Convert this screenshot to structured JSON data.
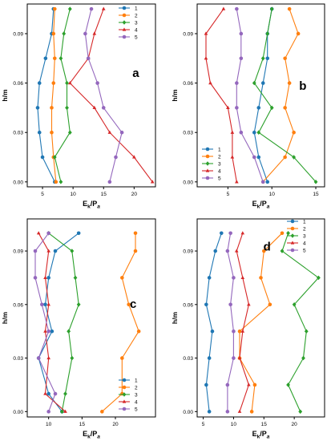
{
  "figure": {
    "colors": [
      "#1f77b4",
      "#ff7f0e",
      "#2ca02c",
      "#d62728",
      "#9467bd"
    ]
  },
  "chart_data": [
    {
      "type": "line",
      "panel_label": "a",
      "ylabel": "h/m",
      "xlabel_main": "E",
      "xlabel_sub1": "k",
      "xlabel_mid": "/P",
      "xlabel_sub2": "a",
      "xlim": [
        2.5,
        23.5
      ],
      "ylim": [
        -0.003,
        0.108
      ],
      "xticks": [
        5,
        10,
        15,
        20
      ],
      "yticks": [
        0.0,
        0.03,
        0.06,
        0.09
      ],
      "ytick_labels": [
        "0.00",
        "0.03",
        "0.06",
        "0.09"
      ],
      "legend_position": "top-right",
      "series": [
        {
          "name": "1",
          "points": [
            [
              7.0,
              0.0
            ],
            [
              5.0,
              0.015
            ],
            [
              4.5,
              0.03
            ],
            [
              4.2,
              0.045
            ],
            [
              4.5,
              0.06
            ],
            [
              5.5,
              0.075
            ],
            [
              6.5,
              0.09
            ],
            [
              6.8,
              0.105
            ]
          ]
        },
        {
          "name": "2",
          "points": [
            [
              7.2,
              0.0
            ],
            [
              6.8,
              0.015
            ],
            [
              6.5,
              0.03
            ],
            [
              6.5,
              0.045
            ],
            [
              6.8,
              0.06
            ],
            [
              7.0,
              0.075
            ],
            [
              6.8,
              0.09
            ],
            [
              7.0,
              0.105
            ]
          ]
        },
        {
          "name": "3",
          "points": [
            [
              8.0,
              0.0
            ],
            [
              7.0,
              0.015
            ],
            [
              9.5,
              0.03
            ],
            [
              9.0,
              0.045
            ],
            [
              9.0,
              0.06
            ],
            [
              8.0,
              0.075
            ],
            [
              8.5,
              0.09
            ],
            [
              9.5,
              0.105
            ]
          ]
        },
        {
          "name": "4",
          "points": [
            [
              23.0,
              0.0
            ],
            [
              20.0,
              0.015
            ],
            [
              16.0,
              0.03
            ],
            [
              13.5,
              0.045
            ],
            [
              9.5,
              0.06
            ],
            [
              12.5,
              0.075
            ],
            [
              13.5,
              0.09
            ],
            [
              15.0,
              0.105
            ]
          ]
        },
        {
          "name": "5",
          "points": [
            [
              16.0,
              0.0
            ],
            [
              17.0,
              0.015
            ],
            [
              18.0,
              0.03
            ],
            [
              15.0,
              0.045
            ],
            [
              14.0,
              0.06
            ],
            [
              12.5,
              0.075
            ],
            [
              12.0,
              0.09
            ],
            [
              13.0,
              0.105
            ]
          ]
        }
      ]
    },
    {
      "type": "line",
      "panel_label": "b",
      "ylabel": "h/m",
      "xlabel_main": "E",
      "xlabel_sub1": "k",
      "xlabel_mid": "/P",
      "xlabel_sub2": "a",
      "xlim": [
        1.5,
        16
      ],
      "ylim": [
        -0.003,
        0.108
      ],
      "xticks": [
        5,
        10,
        15
      ],
      "yticks": [
        0.0,
        0.03,
        0.06,
        0.09
      ],
      "ytick_labels": [
        "0.00",
        "0.03",
        "0.06",
        "0.09"
      ],
      "legend_position": "bottom-left",
      "series": [
        {
          "name": "1",
          "points": [
            [
              9.5,
              0.0
            ],
            [
              8.5,
              0.015
            ],
            [
              8.0,
              0.03
            ],
            [
              8.5,
              0.045
            ],
            [
              9.0,
              0.06
            ],
            [
              9.5,
              0.075
            ],
            [
              9.5,
              0.09
            ],
            [
              10.0,
              0.105
            ]
          ]
        },
        {
          "name": "2",
          "points": [
            [
              9.0,
              0.0
            ],
            [
              11.5,
              0.015
            ],
            [
              12.5,
              0.03
            ],
            [
              11.5,
              0.045
            ],
            [
              12.0,
              0.06
            ],
            [
              11.5,
              0.075
            ],
            [
              13.0,
              0.09
            ],
            [
              12.0,
              0.105
            ]
          ]
        },
        {
          "name": "3",
          "points": [
            [
              15.0,
              0.0
            ],
            [
              12.5,
              0.015
            ],
            [
              8.5,
              0.03
            ],
            [
              10.0,
              0.045
            ],
            [
              8.0,
              0.06
            ],
            [
              9.0,
              0.075
            ],
            [
              9.5,
              0.09
            ],
            [
              10.0,
              0.105
            ]
          ]
        },
        {
          "name": "4",
          "points": [
            [
              6.0,
              0.0
            ],
            [
              5.5,
              0.015
            ],
            [
              5.5,
              0.03
            ],
            [
              5.0,
              0.045
            ],
            [
              3.0,
              0.06
            ],
            [
              2.5,
              0.075
            ],
            [
              2.5,
              0.09
            ],
            [
              4.5,
              0.105
            ]
          ]
        },
        {
          "name": "5",
          "points": [
            [
              9.0,
              0.0
            ],
            [
              8.0,
              0.015
            ],
            [
              6.5,
              0.03
            ],
            [
              6.0,
              0.045
            ],
            [
              6.0,
              0.06
            ],
            [
              6.5,
              0.075
            ],
            [
              6.5,
              0.09
            ],
            [
              6.0,
              0.105
            ]
          ]
        }
      ]
    },
    {
      "type": "line",
      "panel_label": "c",
      "ylabel": "h/m",
      "xlabel_main": "E",
      "xlabel_sub1": "k",
      "xlabel_mid": "/P",
      "xlabel_sub2": "a",
      "xlim": [
        6.8,
        26
      ],
      "ylim": [
        -0.003,
        0.108
      ],
      "xticks": [
        10,
        15,
        20
      ],
      "yticks": [
        0.0,
        0.03,
        0.06,
        0.09
      ],
      "ytick_labels": [
        "0.00",
        "0.03",
        "0.06",
        "0.09"
      ],
      "legend_position": "bottom-right",
      "series": [
        {
          "name": "1",
          "points": [
            [
              12.0,
              0.0
            ],
            [
              10.0,
              0.01
            ],
            [
              8.5,
              0.03
            ],
            [
              10.5,
              0.045
            ],
            [
              9.5,
              0.06
            ],
            [
              10.0,
              0.075
            ],
            [
              11.0,
              0.09
            ],
            [
              14.5,
              0.1
            ]
          ]
        },
        {
          "name": "2",
          "points": [
            [
              18.0,
              0.0
            ],
            [
              21.0,
              0.01
            ],
            [
              21.0,
              0.03
            ],
            [
              23.5,
              0.045
            ],
            [
              22.0,
              0.06
            ],
            [
              21.0,
              0.075
            ],
            [
              23.0,
              0.09
            ],
            [
              23.0,
              0.1
            ]
          ]
        },
        {
          "name": "3",
          "points": [
            [
              12.0,
              0.0
            ],
            [
              12.5,
              0.01
            ],
            [
              13.5,
              0.03
            ],
            [
              13.0,
              0.045
            ],
            [
              14.5,
              0.06
            ],
            [
              14.0,
              0.075
            ],
            [
              13.5,
              0.09
            ],
            [
              10.0,
              0.1
            ]
          ]
        },
        {
          "name": "4",
          "points": [
            [
              12.5,
              0.0
            ],
            [
              9.5,
              0.01
            ],
            [
              10.0,
              0.03
            ],
            [
              9.5,
              0.045
            ],
            [
              10.0,
              0.06
            ],
            [
              9.5,
              0.075
            ],
            [
              10.0,
              0.09
            ],
            [
              8.5,
              0.1
            ]
          ]
        },
        {
          "name": "5",
          "points": [
            [
              10.0,
              0.0
            ],
            [
              11.0,
              0.01
            ],
            [
              8.5,
              0.03
            ],
            [
              10.0,
              0.045
            ],
            [
              9.0,
              0.06
            ],
            [
              8.0,
              0.075
            ],
            [
              8.0,
              0.09
            ],
            [
              10.0,
              0.1
            ]
          ]
        }
      ]
    },
    {
      "type": "line",
      "panel_label": "d",
      "ylabel": "h/m",
      "xlabel_main": "E",
      "xlabel_sub1": "k",
      "xlabel_mid": "/P",
      "xlabel_sub2": "a",
      "xlim": [
        4,
        25
      ],
      "ylim": [
        -0.003,
        0.108
      ],
      "xticks": [
        5,
        10,
        15,
        20
      ],
      "yticks": [
        0.0,
        0.03,
        0.06,
        0.09
      ],
      "ytick_labels": [
        "0.00",
        "0.03",
        "0.06",
        "0.09"
      ],
      "legend_position": "top-right",
      "series": [
        {
          "name": "1",
          "points": [
            [
              6.0,
              0.0
            ],
            [
              5.5,
              0.015
            ],
            [
              6.0,
              0.03
            ],
            [
              6.5,
              0.045
            ],
            [
              5.5,
              0.06
            ],
            [
              6.0,
              0.075
            ],
            [
              7.0,
              0.09
            ],
            [
              8.0,
              0.1
            ]
          ]
        },
        {
          "name": "2",
          "points": [
            [
              13.0,
              0.0
            ],
            [
              13.5,
              0.015
            ],
            [
              11.0,
              0.03
            ],
            [
              11.0,
              0.045
            ],
            [
              16.0,
              0.06
            ],
            [
              14.5,
              0.075
            ],
            [
              15.0,
              0.09
            ],
            [
              18.0,
              0.1
            ]
          ]
        },
        {
          "name": "3",
          "points": [
            [
              21.0,
              0.0
            ],
            [
              19.0,
              0.015
            ],
            [
              21.5,
              0.03
            ],
            [
              22.0,
              0.045
            ],
            [
              20.0,
              0.06
            ],
            [
              24.0,
              0.075
            ],
            [
              18.0,
              0.09
            ],
            [
              19.0,
              0.1
            ]
          ]
        },
        {
          "name": "4",
          "points": [
            [
              11.0,
              0.0
            ],
            [
              12.5,
              0.015
            ],
            [
              11.0,
              0.03
            ],
            [
              11.5,
              0.045
            ],
            [
              12.5,
              0.06
            ],
            [
              11.5,
              0.075
            ],
            [
              10.5,
              0.09
            ],
            [
              11.5,
              0.1
            ]
          ]
        },
        {
          "name": "5",
          "points": [
            [
              9.0,
              0.0
            ],
            [
              9.0,
              0.015
            ],
            [
              10.0,
              0.03
            ],
            [
              10.0,
              0.045
            ],
            [
              9.5,
              0.06
            ],
            [
              10.0,
              0.075
            ],
            [
              9.0,
              0.09
            ],
            [
              9.5,
              0.1
            ]
          ]
        }
      ]
    }
  ]
}
